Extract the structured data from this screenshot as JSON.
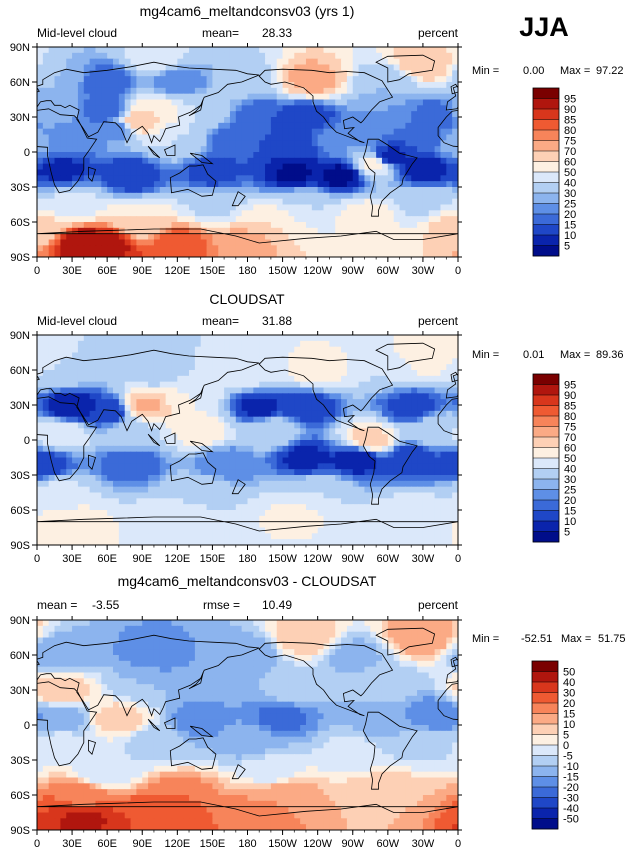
{
  "season": "JJA",
  "chart_data": [
    {
      "type": "heatmap",
      "title": "mg4cam6_meltandconsv03 (yrs 1)",
      "left_label": "Mid-level cloud",
      "mean_label": "mean=",
      "mean_value": "28.33",
      "right_label": "percent",
      "min_label": "Min =",
      "min_value": "0.00",
      "max_label": "Max =",
      "max_value": "97.22",
      "x_ticks": [
        "0",
        "30E",
        "60E",
        "90E",
        "120E",
        "150E",
        "180",
        "150W",
        "120W",
        "90W",
        "60W",
        "30W",
        "0"
      ],
      "y_ticks": [
        "90N",
        "60N",
        "30N",
        "0",
        "30S",
        "60S",
        "90S"
      ],
      "xlim": [
        0,
        360
      ],
      "ylim": [
        -90,
        90
      ],
      "colorbar_labels": [
        "95",
        "90",
        "85",
        "80",
        "75",
        "70",
        "60",
        "50",
        "40",
        "30",
        "25",
        "20",
        "15",
        "10",
        "5"
      ],
      "colorbar_colors": [
        "#7a0000",
        "#b0160e",
        "#d8361c",
        "#ef5a32",
        "#f7845a",
        "#fbaa85",
        "#fdd0b5",
        "#fdf0e2",
        "#dbe8fa",
        "#b2cff3",
        "#8cb4ee",
        "#5e8fe6",
        "#3b6ad8",
        "#1f47c7",
        "#0a24ac",
        "#000d8a"
      ],
      "regions": [
        {
          "lon": 60,
          "lat": -80,
          "value": 92
        },
        {
          "lon": 40,
          "lat": -78,
          "value": 95
        },
        {
          "lon": 120,
          "lat": -78,
          "value": 85
        },
        {
          "lon": 180,
          "lat": -78,
          "value": 75
        },
        {
          "lon": 0,
          "lat": -65,
          "value": 65
        },
        {
          "lon": 90,
          "lat": -60,
          "value": 60
        },
        {
          "lon": 200,
          "lat": -62,
          "value": 60
        },
        {
          "lon": 280,
          "lat": -55,
          "value": 55
        },
        {
          "lon": 30,
          "lat": -45,
          "value": 42
        },
        {
          "lon": 150,
          "lat": -45,
          "value": 38
        },
        {
          "lon": 230,
          "lat": -45,
          "value": 40
        },
        {
          "lon": 330,
          "lat": -42,
          "value": 38
        },
        {
          "lon": 20,
          "lat": -15,
          "value": 8
        },
        {
          "lon": 80,
          "lat": -20,
          "value": 10
        },
        {
          "lon": 150,
          "lat": -18,
          "value": 12
        },
        {
          "lon": 220,
          "lat": -18,
          "value": 4
        },
        {
          "lon": 260,
          "lat": -20,
          "value": 3
        },
        {
          "lon": 300,
          "lat": -5,
          "value": 5
        },
        {
          "lon": 330,
          "lat": -15,
          "value": 5
        },
        {
          "lon": 0,
          "lat": 8,
          "value": 30
        },
        {
          "lon": 20,
          "lat": 10,
          "value": 20
        },
        {
          "lon": 70,
          "lat": 20,
          "value": 20
        },
        {
          "lon": 85,
          "lat": 25,
          "value": 70
        },
        {
          "lon": 120,
          "lat": 10,
          "value": 40
        },
        {
          "lon": 170,
          "lat": 10,
          "value": 15
        },
        {
          "lon": 220,
          "lat": 5,
          "value": 12
        },
        {
          "lon": 260,
          "lat": 10,
          "value": 25
        },
        {
          "lon": 290,
          "lat": -10,
          "value": 55
        },
        {
          "lon": 330,
          "lat": 10,
          "value": 15
        },
        {
          "lon": 10,
          "lat": 35,
          "value": 30
        },
        {
          "lon": 60,
          "lat": 35,
          "value": 15
        },
        {
          "lon": 100,
          "lat": 35,
          "value": 60
        },
        {
          "lon": 140,
          "lat": 35,
          "value": 40
        },
        {
          "lon": 190,
          "lat": 30,
          "value": 15
        },
        {
          "lon": 230,
          "lat": 30,
          "value": 10
        },
        {
          "lon": 300,
          "lat": 35,
          "value": 25
        },
        {
          "lon": 340,
          "lat": 30,
          "value": 15
        },
        {
          "lon": 20,
          "lat": 65,
          "value": 30
        },
        {
          "lon": 60,
          "lat": 60,
          "value": 15
        },
        {
          "lon": 120,
          "lat": 60,
          "value": 20
        },
        {
          "lon": 180,
          "lat": 62,
          "value": 35
        },
        {
          "lon": 235,
          "lat": 62,
          "value": 75
        },
        {
          "lon": 300,
          "lat": 60,
          "value": 30
        },
        {
          "lon": 330,
          "lat": 75,
          "value": 70
        },
        {
          "lon": 100,
          "lat": 80,
          "value": 45
        }
      ]
    },
    {
      "type": "heatmap",
      "title": "CLOUDSAT",
      "left_label": "Mid-level cloud",
      "mean_label": "mean=",
      "mean_value": "31.88",
      "right_label": "percent",
      "min_label": "Min =",
      "min_value": "0.01",
      "max_label": "Max =",
      "max_value": "89.36",
      "x_ticks": [
        "0",
        "30E",
        "60E",
        "90E",
        "120E",
        "150E",
        "180",
        "150W",
        "120W",
        "90W",
        "60W",
        "30W",
        "0"
      ],
      "y_ticks": [
        "90N",
        "60N",
        "30N",
        "0",
        "30S",
        "60S",
        "90S"
      ],
      "xlim": [
        0,
        360
      ],
      "ylim": [
        -90,
        90
      ],
      "colorbar_labels": [
        "95",
        "90",
        "85",
        "80",
        "75",
        "70",
        "60",
        "50",
        "40",
        "30",
        "25",
        "20",
        "15",
        "10",
        "5"
      ],
      "colorbar_colors": [
        "#7a0000",
        "#b0160e",
        "#d8361c",
        "#ef5a32",
        "#f7845a",
        "#fbaa85",
        "#fdd0b5",
        "#fdf0e2",
        "#dbe8fa",
        "#b2cff3",
        "#8cb4ee",
        "#5e8fe6",
        "#3b6ad8",
        "#1f47c7",
        "#0a24ac",
        "#000d8a"
      ],
      "regions": [
        {
          "lon": 30,
          "lat": -70,
          "value": 55
        },
        {
          "lon": 120,
          "lat": -68,
          "value": 50
        },
        {
          "lon": 220,
          "lat": -65,
          "value": 52
        },
        {
          "lon": 320,
          "lat": -65,
          "value": 48
        },
        {
          "lon": 20,
          "lat": -45,
          "value": 42
        },
        {
          "lon": 140,
          "lat": -45,
          "value": 38
        },
        {
          "lon": 240,
          "lat": -45,
          "value": 40
        },
        {
          "lon": 5,
          "lat": -20,
          "value": 10
        },
        {
          "lon": 80,
          "lat": -20,
          "value": 15
        },
        {
          "lon": 160,
          "lat": -20,
          "value": 20
        },
        {
          "lon": 230,
          "lat": -15,
          "value": 8
        },
        {
          "lon": 275,
          "lat": -15,
          "value": 5
        },
        {
          "lon": 320,
          "lat": -15,
          "value": 10
        },
        {
          "lon": 20,
          "lat": 5,
          "value": 50
        },
        {
          "lon": 80,
          "lat": 5,
          "value": 35
        },
        {
          "lon": 140,
          "lat": 8,
          "value": 55
        },
        {
          "lon": 200,
          "lat": 8,
          "value": 40
        },
        {
          "lon": 285,
          "lat": 0,
          "value": 65
        },
        {
          "lon": 340,
          "lat": 8,
          "value": 40
        },
        {
          "lon": 30,
          "lat": 28,
          "value": 5
        },
        {
          "lon": 60,
          "lat": 25,
          "value": 10
        },
        {
          "lon": 95,
          "lat": 30,
          "value": 72
        },
        {
          "lon": 130,
          "lat": 35,
          "value": 50
        },
        {
          "lon": 190,
          "lat": 28,
          "value": 8
        },
        {
          "lon": 230,
          "lat": 28,
          "value": 10
        },
        {
          "lon": 320,
          "lat": 28,
          "value": 12
        },
        {
          "lon": 20,
          "lat": 60,
          "value": 40
        },
        {
          "lon": 100,
          "lat": 58,
          "value": 35
        },
        {
          "lon": 180,
          "lat": 58,
          "value": 45
        },
        {
          "lon": 240,
          "lat": 60,
          "value": 55
        },
        {
          "lon": 300,
          "lat": 62,
          "value": 40
        },
        {
          "lon": 330,
          "lat": 70,
          "value": 60
        }
      ]
    },
    {
      "type": "heatmap",
      "title": "mg4cam6_meltandconsv03 - CLOUDSAT",
      "left_label": "mean =",
      "left_value": "-3.55",
      "mean_label": "rmse =",
      "mean_value": "10.49",
      "right_label": "percent",
      "min_label": "Min =",
      "min_value": "-52.51",
      "max_label": "Max =",
      "max_value": "51.75",
      "x_ticks": [
        "0",
        "30E",
        "60E",
        "90E",
        "120E",
        "150E",
        "180",
        "150W",
        "120W",
        "90W",
        "60W",
        "30W",
        "0"
      ],
      "y_ticks": [
        "90N",
        "60N",
        "30N",
        "0",
        "30S",
        "60S",
        "90S"
      ],
      "xlim": [
        0,
        360
      ],
      "ylim": [
        -90,
        90
      ],
      "colorbar_labels": [
        "50",
        "40",
        "30",
        "20",
        "15",
        "10",
        "5",
        "0",
        "-5",
        "-10",
        "-15",
        "-20",
        "-30",
        "-40",
        "-50"
      ],
      "colorbar_colors": [
        "#7a0000",
        "#b0160e",
        "#d8361c",
        "#ef5a32",
        "#f7845a",
        "#fbaa85",
        "#fdd0b5",
        "#fdf0e2",
        "#dbe8fa",
        "#b2cff3",
        "#8cb4ee",
        "#5e8fe6",
        "#3b6ad8",
        "#1f47c7",
        "#0a24ac",
        "#000d8a"
      ],
      "regions": [
        {
          "lon": 40,
          "lat": -80,
          "value": 42
        },
        {
          "lon": 100,
          "lat": -80,
          "value": 30
        },
        {
          "lon": 180,
          "lat": -80,
          "value": 20
        },
        {
          "lon": 40,
          "lat": -62,
          "value": 18
        },
        {
          "lon": 120,
          "lat": -62,
          "value": 20
        },
        {
          "lon": 210,
          "lat": -60,
          "value": 15
        },
        {
          "lon": 300,
          "lat": -58,
          "value": 10
        },
        {
          "lon": 60,
          "lat": -40,
          "value": -5
        },
        {
          "lon": 200,
          "lat": -40,
          "value": -2
        },
        {
          "lon": 20,
          "lat": -15,
          "value": -3
        },
        {
          "lon": 100,
          "lat": -15,
          "value": -8
        },
        {
          "lon": 180,
          "lat": -15,
          "value": -12
        },
        {
          "lon": 270,
          "lat": -20,
          "value": -4
        },
        {
          "lon": 330,
          "lat": -15,
          "value": -6
        },
        {
          "lon": 20,
          "lat": 5,
          "value": -15
        },
        {
          "lon": 70,
          "lat": 5,
          "value": 8
        },
        {
          "lon": 140,
          "lat": 5,
          "value": -18
        },
        {
          "lon": 210,
          "lat": 8,
          "value": -22
        },
        {
          "lon": 290,
          "lat": 0,
          "value": -12
        },
        {
          "lon": 340,
          "lat": 8,
          "value": -20
        },
        {
          "lon": 20,
          "lat": 30,
          "value": 10
        },
        {
          "lon": 90,
          "lat": 35,
          "value": -10
        },
        {
          "lon": 150,
          "lat": 35,
          "value": -12
        },
        {
          "lon": 220,
          "lat": 30,
          "value": -6
        },
        {
          "lon": 300,
          "lat": 35,
          "value": -8
        },
        {
          "lon": 20,
          "lat": 60,
          "value": -15
        },
        {
          "lon": 100,
          "lat": 60,
          "value": -18
        },
        {
          "lon": 180,
          "lat": 60,
          "value": -14
        },
        {
          "lon": 230,
          "lat": 75,
          "value": 10
        },
        {
          "lon": 270,
          "lat": 60,
          "value": -12
        },
        {
          "lon": 330,
          "lat": 75,
          "value": 15
        }
      ]
    }
  ]
}
